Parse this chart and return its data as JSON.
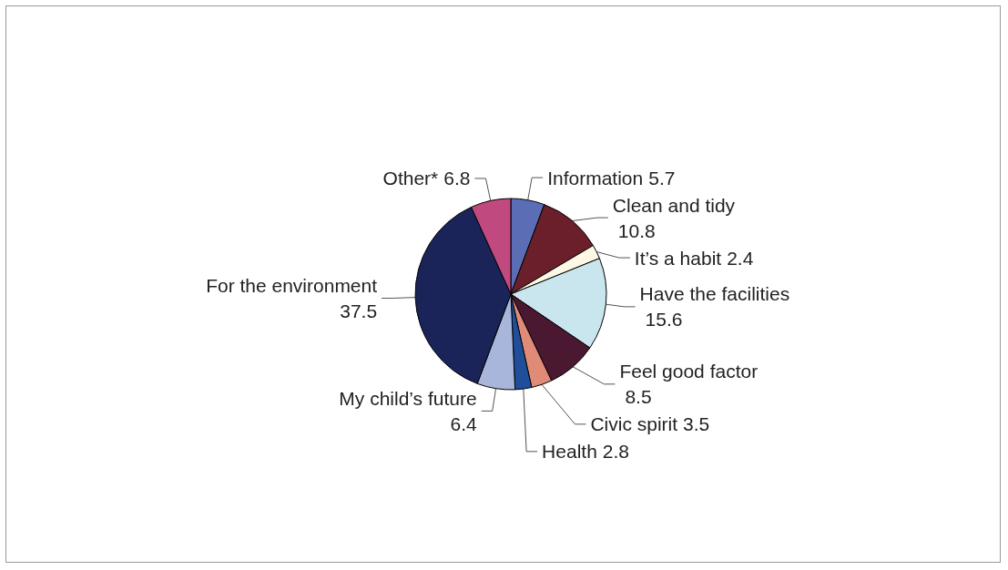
{
  "chart_data": {
    "type": "pie",
    "categories": [
      "Information",
      "Clean and tidy",
      "It’s a habit",
      "Have the facilities",
      "Feel good factor",
      "Civic spirit",
      "Health",
      "My child’s future",
      "For the environment",
      "Other*"
    ],
    "values": [
      5.7,
      10.8,
      2.4,
      15.6,
      8.5,
      3.5,
      2.8,
      6.4,
      37.5,
      6.8
    ],
    "colors": [
      "#5b6db5",
      "#6b1f2a",
      "#fdf8e4",
      "#c9e6ee",
      "#4a1830",
      "#e08a78",
      "#1f4f9a",
      "#a9b6dc",
      "#1a2458",
      "#c04a80"
    ],
    "data_labels": true,
    "legend": false
  }
}
